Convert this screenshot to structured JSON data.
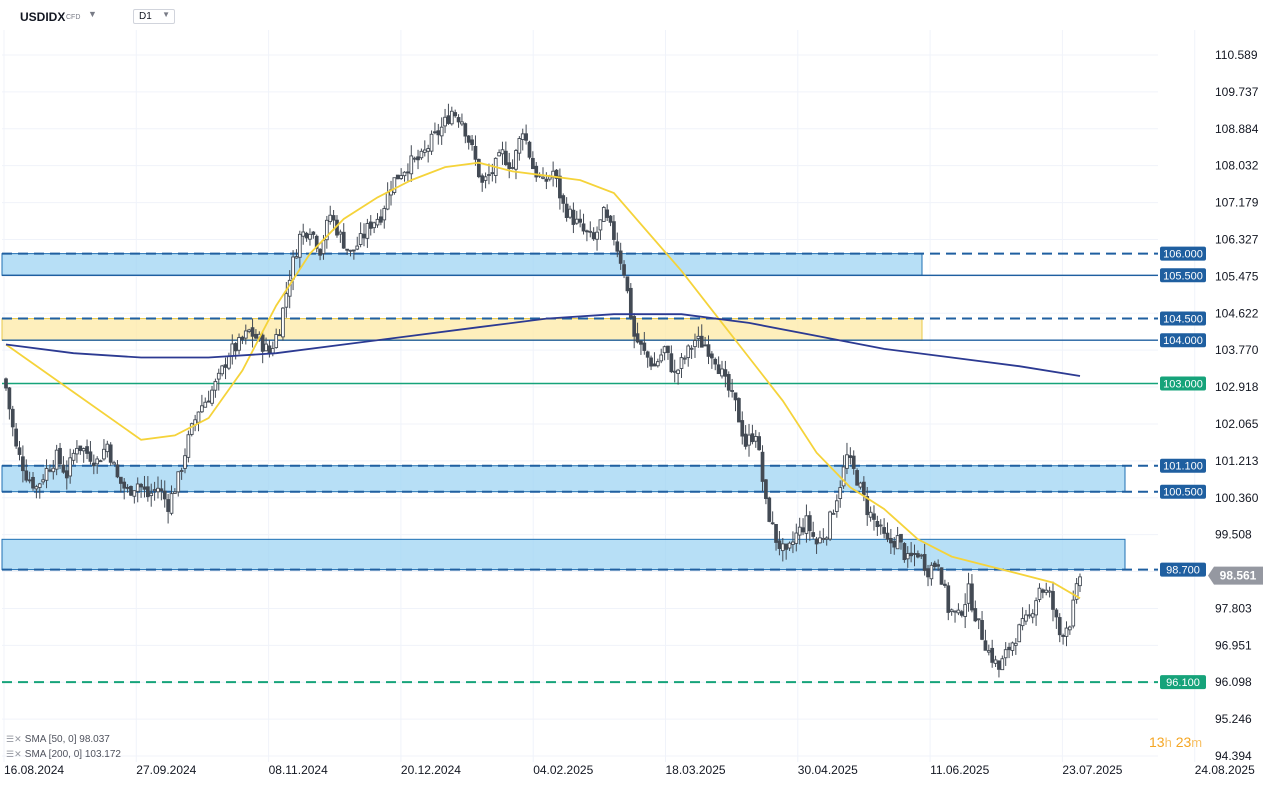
{
  "header": {
    "symbol": "USDIDX",
    "symbol_type": "CFD",
    "timeframe": "D1"
  },
  "legend": [
    {
      "label": "SMA [50, 0]",
      "value": "98.037"
    },
    {
      "label": "SMA [200, 0]",
      "value": "103.172"
    }
  ],
  "timer": {
    "hours": "13",
    "h_unit": "h",
    "minutes": "23",
    "m_unit": "m"
  },
  "colors": {
    "candle": "#434a54",
    "sma50": "#f5d33a",
    "sma200": "#2c3a92",
    "zone_blue": "#9fd4f3",
    "zone_yellow": "#fde9a6",
    "level_blue": "#1f5fa0",
    "level_green": "#16a37a",
    "price_tag": "#9598a1"
  },
  "chart_data": {
    "type": "candlestick",
    "instrument": "USDIDX",
    "timeframe": "D1",
    "x_tick_labels": [
      "16.08.2024",
      "27.09.2024",
      "08.11.2024",
      "20.12.2024",
      "04.02.2025",
      "18.03.2025",
      "30.04.2025",
      "11.06.2025",
      "23.07.2025",
      "24.08.2025"
    ],
    "y_tick_labels": [
      "110.589",
      "109.737",
      "108.884",
      "108.032",
      "107.179",
      "106.327",
      "105.475",
      "104.622",
      "103.770",
      "102.918",
      "102.065",
      "101.213",
      "100.360",
      "99.508",
      "98.656",
      "97.803",
      "96.951",
      "96.098",
      "95.246",
      "94.394"
    ],
    "ylim": [
      94.394,
      110.589
    ],
    "last_price": "98.561",
    "close_path": [
      [
        0,
        102.9
      ],
      [
        3,
        101.5
      ],
      [
        6,
        100.9
      ],
      [
        9,
        100.6
      ],
      [
        12,
        101.0
      ],
      [
        15,
        101.3
      ],
      [
        18,
        100.9
      ],
      [
        21,
        101.6
      ],
      [
        24,
        101.4
      ],
      [
        27,
        101.2
      ],
      [
        30,
        101.6
      ],
      [
        33,
        100.8
      ],
      [
        36,
        100.5
      ],
      [
        39,
        100.7
      ],
      [
        42,
        100.4
      ],
      [
        45,
        100.6
      ],
      [
        48,
        100.2
      ],
      [
        51,
        100.8
      ],
      [
        54,
        101.7
      ],
      [
        57,
        102.4
      ],
      [
        60,
        102.7
      ],
      [
        63,
        103.1
      ],
      [
        66,
        103.7
      ],
      [
        69,
        103.9
      ],
      [
        72,
        104.2
      ],
      [
        75,
        104.0
      ],
      [
        78,
        103.7
      ],
      [
        81,
        104.3
      ],
      [
        84,
        105.5
      ],
      [
        87,
        106.4
      ],
      [
        90,
        106.6
      ],
      [
        93,
        106.1
      ],
      [
        96,
        106.9
      ],
      [
        99,
        106.4
      ],
      [
        102,
        106.0
      ],
      [
        105,
        106.3
      ],
      [
        108,
        106.7
      ],
      [
        111,
        106.9
      ],
      [
        114,
        107.6
      ],
      [
        117,
        107.9
      ],
      [
        120,
        108.1
      ],
      [
        123,
        108.2
      ],
      [
        126,
        108.6
      ],
      [
        129,
        108.9
      ],
      [
        132,
        109.3
      ],
      [
        135,
        109.1
      ],
      [
        138,
        108.4
      ],
      [
        141,
        107.6
      ],
      [
        144,
        107.9
      ],
      [
        147,
        108.3
      ],
      [
        150,
        108.0
      ],
      [
        153,
        108.9
      ],
      [
        156,
        108.0
      ],
      [
        159,
        107.6
      ],
      [
        162,
        107.9
      ],
      [
        165,
        107.1
      ],
      [
        168,
        106.8
      ],
      [
        171,
        106.5
      ],
      [
        174,
        106.3
      ],
      [
        177,
        106.9
      ],
      [
        180,
        106.4
      ],
      [
        183,
        105.6
      ],
      [
        186,
        104.1
      ],
      [
        189,
        103.7
      ],
      [
        192,
        103.4
      ],
      [
        195,
        103.8
      ],
      [
        198,
        103.2
      ],
      [
        201,
        103.6
      ],
      [
        204,
        104.0
      ],
      [
        207,
        103.9
      ],
      [
        210,
        103.6
      ],
      [
        213,
        103.0
      ],
      [
        216,
        102.5
      ],
      [
        219,
        101.6
      ],
      [
        222,
        101.9
      ],
      [
        225,
        100.2
      ],
      [
        228,
        99.4
      ],
      [
        231,
        99.0
      ],
      [
        234,
        99.5
      ],
      [
        237,
        99.8
      ],
      [
        240,
        99.3
      ],
      [
        243,
        99.6
      ],
      [
        246,
        100.4
      ],
      [
        249,
        101.3
      ],
      [
        252,
        100.8
      ],
      [
        255,
        100.1
      ],
      [
        258,
        99.7
      ],
      [
        261,
        99.3
      ],
      [
        264,
        99.4
      ],
      [
        267,
        98.9
      ],
      [
        270,
        99.1
      ],
      [
        273,
        98.7
      ],
      [
        276,
        98.9
      ],
      [
        279,
        97.8
      ],
      [
        282,
        97.6
      ],
      [
        285,
        98.2
      ],
      [
        288,
        97.4
      ],
      [
        291,
        96.8
      ],
      [
        294,
        96.4
      ],
      [
        297,
        96.9
      ],
      [
        300,
        97.3
      ],
      [
        303,
        97.6
      ],
      [
        306,
        98.3
      ],
      [
        309,
        98.1
      ],
      [
        312,
        97.2
      ],
      [
        315,
        97.5
      ],
      [
        318,
        98.561
      ]
    ],
    "series": [
      {
        "name": "SMA [50, 0]",
        "type": "line",
        "points": [
          [
            0,
            103.9
          ],
          [
            20,
            102.8
          ],
          [
            40,
            101.7
          ],
          [
            50,
            101.8
          ],
          [
            60,
            102.2
          ],
          [
            70,
            103.3
          ],
          [
            80,
            104.8
          ],
          [
            90,
            106.0
          ],
          [
            100,
            106.8
          ],
          [
            110,
            107.3
          ],
          [
            120,
            107.7
          ],
          [
            130,
            108.0
          ],
          [
            140,
            108.1
          ],
          [
            150,
            107.9
          ],
          [
            160,
            107.8
          ],
          [
            170,
            107.7
          ],
          [
            180,
            107.4
          ],
          [
            190,
            106.5
          ],
          [
            200,
            105.6
          ],
          [
            210,
            104.6
          ],
          [
            220,
            103.6
          ],
          [
            230,
            102.6
          ],
          [
            240,
            101.4
          ],
          [
            250,
            100.6
          ],
          [
            260,
            100.1
          ],
          [
            270,
            99.4
          ],
          [
            280,
            99.0
          ],
          [
            290,
            98.8
          ],
          [
            300,
            98.6
          ],
          [
            310,
            98.4
          ],
          [
            318,
            98.037
          ]
        ]
      },
      {
        "name": "SMA [200, 0]",
        "type": "line",
        "points": [
          [
            0,
            103.9
          ],
          [
            20,
            103.7
          ],
          [
            40,
            103.6
          ],
          [
            60,
            103.6
          ],
          [
            80,
            103.7
          ],
          [
            100,
            103.9
          ],
          [
            120,
            104.1
          ],
          [
            140,
            104.3
          ],
          [
            160,
            104.5
          ],
          [
            180,
            104.6
          ],
          [
            200,
            104.6
          ],
          [
            220,
            104.4
          ],
          [
            240,
            104.1
          ],
          [
            260,
            103.8
          ],
          [
            280,
            103.6
          ],
          [
            300,
            103.4
          ],
          [
            318,
            103.172
          ]
        ]
      }
    ],
    "zones": [
      {
        "kind": "blue",
        "from": 105.5,
        "to": 106.0,
        "label_top": "106.000",
        "label_bottom": "105.500"
      },
      {
        "kind": "yellow",
        "from": 104.0,
        "to": 104.5,
        "label_top": "104.500",
        "label_bottom": "104.000"
      },
      {
        "kind": "blue",
        "from": 100.5,
        "to": 101.1,
        "label_top": "101.100",
        "label_bottom": "100.500"
      },
      {
        "kind": "blue",
        "from": 98.7,
        "to": 99.4
      }
    ],
    "levels": [
      {
        "price": 106.0,
        "label": "106.000",
        "style": "dashed",
        "color": "blue"
      },
      {
        "price": 105.5,
        "label": "105.500",
        "style": "solid",
        "color": "blue"
      },
      {
        "price": 104.5,
        "label": "104.500",
        "style": "dashed",
        "color": "blue"
      },
      {
        "price": 104.0,
        "label": "104.000",
        "style": "solid",
        "color": "blue"
      },
      {
        "price": 103.0,
        "label": "103.000",
        "style": "solid",
        "color": "green"
      },
      {
        "price": 101.1,
        "label": "101.100",
        "style": "dashed",
        "color": "blue"
      },
      {
        "price": 100.5,
        "label": "100.500",
        "style": "dashed",
        "color": "blue"
      },
      {
        "price": 98.7,
        "label": "98.700",
        "style": "dashed",
        "color": "blue"
      },
      {
        "price": 96.1,
        "label": "96.100",
        "style": "dashed",
        "color": "green"
      }
    ]
  }
}
